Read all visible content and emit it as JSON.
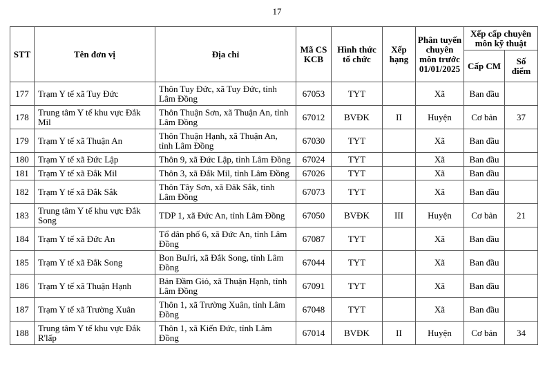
{
  "page_number": "17",
  "headers": {
    "stt": "STT",
    "name": "Tên đơn vị",
    "address": "Địa chỉ",
    "code": "Mã CS KCB",
    "form": "Hình thức tổ chức",
    "rank": "Xếp hạng",
    "tier": "Phân tuyến chuyên môn trước 01/01/2025",
    "group": "Xếp cấp chuyên môn kỹ thuật",
    "level": "Cấp CM",
    "points": "Số điểm"
  },
  "rows": [
    {
      "stt": "177",
      "name": "Trạm Y tế xã Tuy Đức",
      "address": "Thôn Tuy Đức, xã Tuy Đức, tỉnh Lâm Đồng",
      "code": "67053",
      "form": "TYT",
      "rank": "",
      "tier": "Xã",
      "level": "Ban đầu",
      "points": ""
    },
    {
      "stt": "178",
      "name": "Trung tâm Y tế khu vực Đắk Mil",
      "address": "Thôn Thuận Sơn, xã Thuận An, tỉnh Lâm Đồng",
      "code": "67012",
      "form": "BVĐK",
      "rank": "II",
      "tier": "Huyện",
      "level": "Cơ bản",
      "points": "37"
    },
    {
      "stt": "179",
      "name": "Trạm Y tế xã Thuận An",
      "address": "Thôn Thuận Hạnh, xã Thuận An, tỉnh Lâm Đồng",
      "code": "67030",
      "form": "TYT",
      "rank": "",
      "tier": "Xã",
      "level": "Ban đầu",
      "points": ""
    },
    {
      "stt": "180",
      "name": "Trạm Y tế xã Đức Lập",
      "address": "Thôn 9, xã Đức Lập, tỉnh Lâm Đồng",
      "code": "67024",
      "form": "TYT",
      "rank": "",
      "tier": "Xã",
      "level": "Ban đầu",
      "points": ""
    },
    {
      "stt": "181",
      "name": "Trạm Y tế xã Đắk Mil",
      "address": "Thôn 3, xã Đắk Mil, tỉnh Lâm Đồng",
      "code": "67026",
      "form": "TYT",
      "rank": "",
      "tier": "Xã",
      "level": "Ban đầu",
      "points": ""
    },
    {
      "stt": "182",
      "name": "Trạm Y tế xã Đắk Sắk",
      "address": "Thôn Tây Sơn, xã Đăk Sắk, tỉnh Lâm Đồng",
      "code": "67073",
      "form": "TYT",
      "rank": "",
      "tier": "Xã",
      "level": "Ban đầu",
      "points": ""
    },
    {
      "stt": "183",
      "name": "Trung tâm Y tế khu vực Đắk Song",
      "address": "TDP 1, xã Đức An, tỉnh Lâm Đồng",
      "code": "67050",
      "form": "BVĐK",
      "rank": "III",
      "tier": "Huyện",
      "level": "Cơ bản",
      "points": "21"
    },
    {
      "stt": "184",
      "name": "Trạm Y tế xã Đức An",
      "address": "Tổ dân phố 6, xã Đức An, tỉnh Lâm Đồng",
      "code": "67087",
      "form": "TYT",
      "rank": "",
      "tier": "Xã",
      "level": "Ban đầu",
      "points": ""
    },
    {
      "stt": "185",
      "name": "Trạm Y tế xã Đắk Song",
      "address": "Bon BuJri, xã Đắk Song, tỉnh Lâm Đồng",
      "code": "67044",
      "form": "TYT",
      "rank": "",
      "tier": "Xã",
      "level": "Ban đầu",
      "points": ""
    },
    {
      "stt": "186",
      "name": "Trạm Y tế xã Thuận Hạnh",
      "address": "Bản Đầm Giỏ, xã Thuận Hạnh, tỉnh Lâm Đồng",
      "code": "67091",
      "form": "TYT",
      "rank": "",
      "tier": "Xã",
      "level": "Ban đầu",
      "points": ""
    },
    {
      "stt": "187",
      "name": "Trạm Y tế xã Trường Xuân",
      "address": "Thôn 1, xã Trường Xuân, tỉnh Lâm Đồng",
      "code": "67048",
      "form": "TYT",
      "rank": "",
      "tier": "Xã",
      "level": "Ban đầu",
      "points": ""
    },
    {
      "stt": "188",
      "name": "Trung tâm Y tế khu vực Đắk R'lấp",
      "address": "Thôn 1, xã Kiến Đức, tỉnh Lâm Đồng",
      "code": "67014",
      "form": "BVĐK",
      "rank": "II",
      "tier": "Huyện",
      "level": "Cơ bản",
      "points": "34"
    }
  ]
}
